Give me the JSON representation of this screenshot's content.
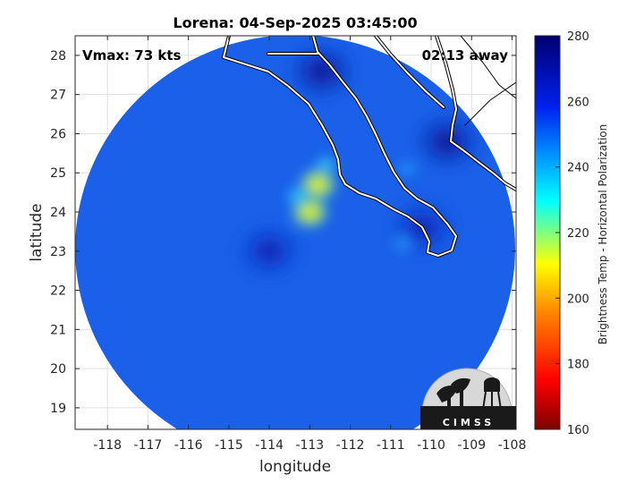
{
  "title": "Lorena: 04-Sep-2025 03:45:00",
  "vmax_label": "Vmax: 73 kts",
  "time_away_label": "02:13 away",
  "xlabel": "longitude",
  "ylabel": "latitude",
  "x_ticks": [
    "-118",
    "-117",
    "-116",
    "-115",
    "-114",
    "-113",
    "-112",
    "-111",
    "-110",
    "-109",
    "-108"
  ],
  "y_ticks": [
    "19",
    "20",
    "21",
    "22",
    "23",
    "24",
    "25",
    "26",
    "27",
    "28"
  ],
  "colorbar": {
    "label": "Brightness Temp - Horizontal Polarization",
    "ticks": [
      "280",
      "260",
      "240",
      "220",
      "200",
      "180",
      "160"
    ],
    "range": [
      160,
      280
    ],
    "colors": [
      "#7f0000",
      "#ff0000",
      "#ff8800",
      "#ffff00",
      "#00ffff",
      "#0080ff",
      "#0000ff",
      "#00007f"
    ]
  },
  "logo_text": "CIMSS",
  "chart_data": {
    "type": "heatmap",
    "title": "Lorena: 04-Sep-2025 03:45:00",
    "xlabel": "longitude",
    "ylabel": "latitude",
    "xlim": [
      -118.8,
      -107.9
    ],
    "ylim": [
      18.45,
      28.5
    ],
    "grid": true,
    "value_range": [
      160,
      280
    ],
    "background_value": 258,
    "coverage_circle": {
      "center_lon": -113.3,
      "center_lat": 23.45,
      "radius_deg_lon": 5.5,
      "radius_deg_lat": 5.05
    },
    "warm_regions": [
      {
        "lon": -112.8,
        "lat": 24.7,
        "value": 214
      },
      {
        "lon": -113.0,
        "lat": 24.0,
        "value": 218
      },
      {
        "lon": -112.6,
        "lat": 25.2,
        "value": 228
      },
      {
        "lon": -113.3,
        "lat": 24.4,
        "value": 235
      },
      {
        "lon": -110.7,
        "lat": 23.2,
        "value": 240
      },
      {
        "lon": -110.6,
        "lat": 25.1,
        "value": 244
      }
    ],
    "cold_regions": [
      {
        "lon": -112.7,
        "lat": 27.6,
        "value": 272
      },
      {
        "lon": -109.6,
        "lat": 25.8,
        "value": 272
      },
      {
        "lon": -110.2,
        "lat": 23.6,
        "value": 270
      },
      {
        "lon": -114.0,
        "lat": 23.0,
        "value": 268
      }
    ]
  }
}
